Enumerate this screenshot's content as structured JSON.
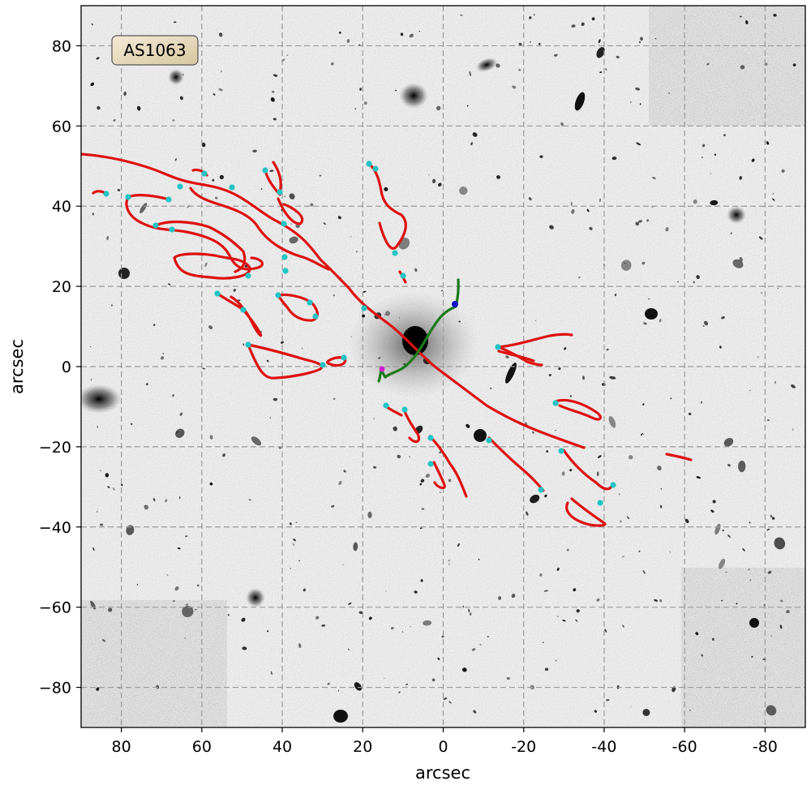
{
  "figure": {
    "field_label": "AS1063",
    "x_axis_label": "arcsec",
    "y_axis_label": "arcsec",
    "x_range": [
      90,
      -90
    ],
    "y_range": [
      -90,
      90
    ],
    "x_ticks": [
      {
        "value": 80,
        "label": "80"
      },
      {
        "value": 60,
        "label": "60"
      },
      {
        "value": 40,
        "label": "40"
      },
      {
        "value": 20,
        "label": "20"
      },
      {
        "value": 0,
        "label": "0"
      },
      {
        "value": -20,
        "label": "-20"
      },
      {
        "value": -40,
        "label": "-40"
      },
      {
        "value": -60,
        "label": "-60"
      },
      {
        "value": -80,
        "label": "-80"
      }
    ],
    "y_ticks": [
      {
        "value": 80,
        "label": "80"
      },
      {
        "value": 60,
        "label": "60"
      },
      {
        "value": 40,
        "label": "40"
      },
      {
        "value": 20,
        "label": "20"
      },
      {
        "value": 0,
        "label": "0"
      },
      {
        "value": -20,
        "label": "−20"
      },
      {
        "value": -40,
        "label": "−40"
      },
      {
        "value": -60,
        "label": "−60"
      },
      {
        "value": -80,
        "label": "−80"
      }
    ],
    "grid": true,
    "colors": {
      "critical_curve": "#dd1111",
      "caustic": "#1a7a1a",
      "image_marker": "#22c3c3",
      "source_marker_blue": "#1010cc",
      "source_marker_magenta": "#cc22cc",
      "badge_fill": "#eadfc4",
      "grid": "#9a9a9a"
    }
  }
}
